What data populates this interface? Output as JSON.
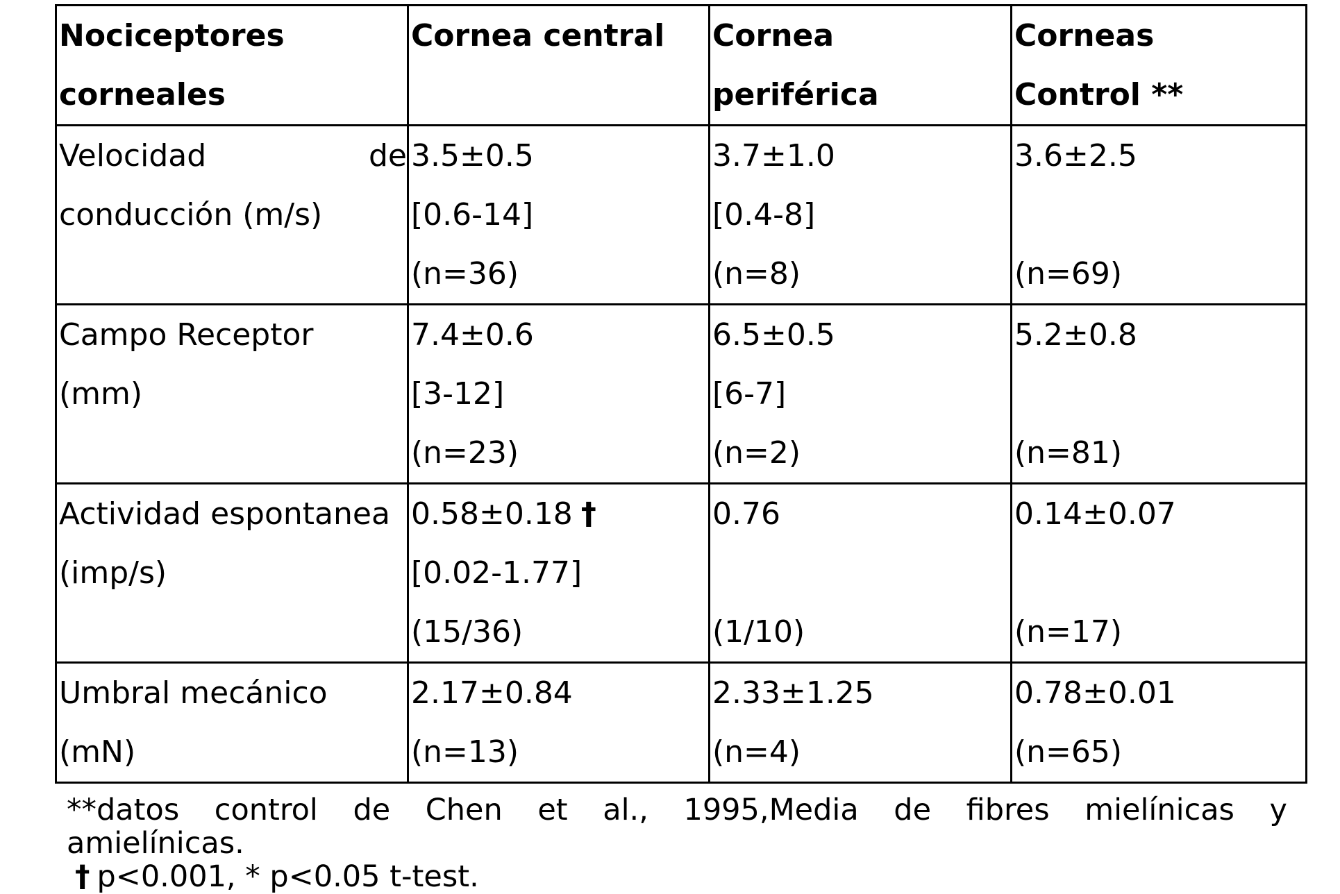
{
  "table": {
    "header": {
      "col1": [
        "Nociceptores",
        "corneales"
      ],
      "col2": [
        "Cornea central"
      ],
      "col3": [
        "Cornea",
        "periférica"
      ],
      "col4": [
        "Corneas",
        "Control **"
      ]
    },
    "rows": [
      {
        "label_a": "Velocidad",
        "label_a_end": "de",
        "label_b": "conducción (m/s)",
        "central": [
          "3.5±0.5",
          "[0.6-14]",
          "(n=36)"
        ],
        "peripheral": [
          "3.7±1.0",
          "[0.4-8]",
          "(n=8)"
        ],
        "control": [
          "3.6±2.5",
          "(n=69)"
        ]
      },
      {
        "label": [
          "Campo Receptor",
          "(mm)"
        ],
        "central": [
          "7.4±0.6",
          "[3-12]",
          "(n=23)"
        ],
        "peripheral": [
          "6.5±0.5",
          "[6-7]",
          "(n=2)"
        ],
        "control": [
          "5.2±0.8",
          "(n=81)"
        ]
      },
      {
        "label": [
          "Actividad espontanea",
          "(imp/s)"
        ],
        "central": [
          "0.58±0.18",
          "[0.02-1.77]",
          "(15/36)"
        ],
        "central_marker": "†",
        "peripheral": [
          "0.76",
          "(1/10)"
        ],
        "control": [
          "0.14±0.07",
          "(n=17)"
        ]
      },
      {
        "label": [
          "Umbral mecánico",
          "(mN)"
        ],
        "central": [
          "2.17±0.84",
          "(n=13)"
        ],
        "peripheral": [
          "2.33±1.25",
          "(n=4)"
        ],
        "control": [
          "0.78±0.01",
          "(n=65)"
        ]
      }
    ]
  },
  "notes": {
    "line1_words": [
      "**datos",
      "control",
      "de",
      "Chen",
      "et",
      "al.,",
      "1995,Media",
      "de",
      "fibres",
      "mielínicas",
      "y"
    ],
    "line2": "amielínicas.",
    "line3_marker": "†",
    "line3": "p<0.001, * p<0.05 t-test."
  }
}
